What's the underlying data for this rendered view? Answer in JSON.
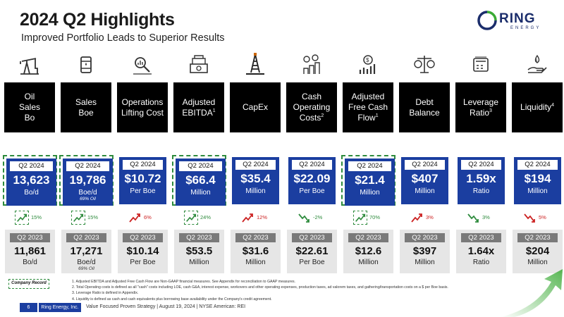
{
  "page": {
    "title": "2024 Q2 Highlights",
    "subtitle": "Improved Portfolio Leads to Superior Results"
  },
  "logo": {
    "name": "RING",
    "tagline": "ENERGY"
  },
  "colors": {
    "blue": "#1b3ea0",
    "green": "#2e8b3d",
    "red": "#cc2222",
    "grey_box": "#e6e6e6"
  },
  "metrics": [
    {
      "header_lines": [
        "Oil",
        "Sales",
        "Bo"
      ],
      "sup": "",
      "icon": "oil-pumpjack-icon",
      "cur_label": "Q2 2024",
      "cur_value": "13,623",
      "cur_unit": "Bo/d",
      "cur_note": "",
      "trend": "up",
      "change": "15%",
      "record": true,
      "prev_label": "Q2 2023",
      "prev_value": "11,861",
      "prev_unit": "Bo/d",
      "prev_note": ""
    },
    {
      "header_lines": [
        "Sales",
        "Boe"
      ],
      "sup": "",
      "icon": "oil-barrel-icon",
      "cur_label": "Q2 2024",
      "cur_value": "19,786",
      "cur_unit": "Boe/d",
      "cur_note": "69% Oil",
      "trend": "up",
      "change": "15%",
      "record": true,
      "prev_label": "Q2 2023",
      "prev_value": "17,271",
      "prev_unit": "Boe/d",
      "prev_note": "69% Oil"
    },
    {
      "header_lines": [
        "Operations",
        "Lifting Cost"
      ],
      "sup": "",
      "icon": "cost-analysis-icon",
      "cur_label": "Q2 2024",
      "cur_value": "$10.72",
      "cur_unit": "Per Boe",
      "cur_note": "",
      "trend": "up-bad",
      "change": "6%",
      "record": false,
      "prev_label": "Q2 2023",
      "prev_value": "$10.14",
      "prev_unit": "Per Boe",
      "prev_note": ""
    },
    {
      "header_lines": [
        "Adjusted",
        "EBITDA"
      ],
      "sup": "1",
      "icon": "money-stack-icon",
      "cur_label": "Q2 2024",
      "cur_value": "$66.4",
      "cur_unit": "Million",
      "cur_note": "",
      "trend": "up",
      "change": "24%",
      "record": true,
      "prev_label": "Q2 2023",
      "prev_value": "$53.5",
      "prev_unit": "Million",
      "prev_note": ""
    },
    {
      "header_lines": [
        "CapEx"
      ],
      "sup": "",
      "icon": "drilling-rig-icon",
      "cur_label": "Q2 2024",
      "cur_value": "$35.4",
      "cur_unit": "Million",
      "cur_note": "",
      "trend": "up-bad",
      "change": "12%",
      "record": false,
      "prev_label": "Q2 2023",
      "prev_value": "$31.6",
      "prev_unit": "Million",
      "prev_note": ""
    },
    {
      "header_lines": [
        "Cash",
        "Operating",
        "Costs"
      ],
      "sup": "2",
      "icon": "coins-growth-icon",
      "cur_label": "Q2 2024",
      "cur_value": "$22.09",
      "cur_unit": "Per Boe",
      "cur_note": "",
      "trend": "down-good",
      "change": "-2%",
      "record": false,
      "prev_label": "Q2 2023",
      "prev_value": "$22.61",
      "prev_unit": "Per Boe",
      "prev_note": ""
    },
    {
      "header_lines": [
        "Adjusted",
        "Free Cash",
        "Flow"
      ],
      "sup": "1",
      "icon": "cash-flow-icon",
      "cur_label": "Q2 2024",
      "cur_value": "$21.4",
      "cur_unit": "Million",
      "cur_note": "",
      "trend": "up",
      "change": "70%",
      "record": true,
      "prev_label": "Q2 2023",
      "prev_value": "$12.6",
      "prev_unit": "Million",
      "prev_note": ""
    },
    {
      "header_lines": [
        "Debt",
        "Balance"
      ],
      "sup": "",
      "icon": "balance-scale-icon",
      "cur_label": "Q2 2024",
      "cur_value": "$407",
      "cur_unit": "Million",
      "cur_note": "",
      "trend": "up-bad",
      "change": "3%",
      "record": false,
      "prev_label": "Q2 2023",
      "prev_value": "$397",
      "prev_unit": "Million",
      "prev_note": ""
    },
    {
      "header_lines": [
        "Leverage",
        "Ratio"
      ],
      "sup": "3",
      "icon": "calculator-icon",
      "cur_label": "Q2 2024",
      "cur_value": "1.59x",
      "cur_unit": "Ratio",
      "cur_note": "",
      "trend": "down-good",
      "change": "3%",
      "record": false,
      "prev_label": "Q2 2023",
      "prev_value": "1.64x",
      "prev_unit": "Ratio",
      "prev_note": ""
    },
    {
      "header_lines": [
        "Liquidity"
      ],
      "sup": "4",
      "icon": "hand-droplet-icon",
      "cur_label": "Q2 2024",
      "cur_value": "$194",
      "cur_unit": "Million",
      "cur_note": "",
      "trend": "down-bad",
      "change": "5%",
      "record": false,
      "prev_label": "Q2 2023",
      "prev_value": "$204",
      "prev_unit": "Million",
      "prev_note": ""
    }
  ],
  "record_badge": "Company Record",
  "footnotes": [
    "1.     Adjusted EBITDA and Adjusted Free Cash Flow are Non-GAAP financial measures. See Appendix for reconciliation to GAAP measures.",
    "2.     Total Operating costs is defined as all \"cash\" costs including LOE, cash G&A, interest expense, workovers and other operating expenses, production taxes, ad valorem taxes, and gathering/transportation costs on a $ per Boe basis.",
    "3.     Leverage Ratio is defined in Appendix.",
    "4.     Liquidity is defined as cash and cash equivalents plus borrowing base availability under the Company's credit agreement."
  ],
  "footer": {
    "page_number": "6",
    "company": "Ring Energy, Inc.",
    "text": "Value Focused Proven Strategy  |  August 19, 2024  |  NYSE American: REI"
  }
}
